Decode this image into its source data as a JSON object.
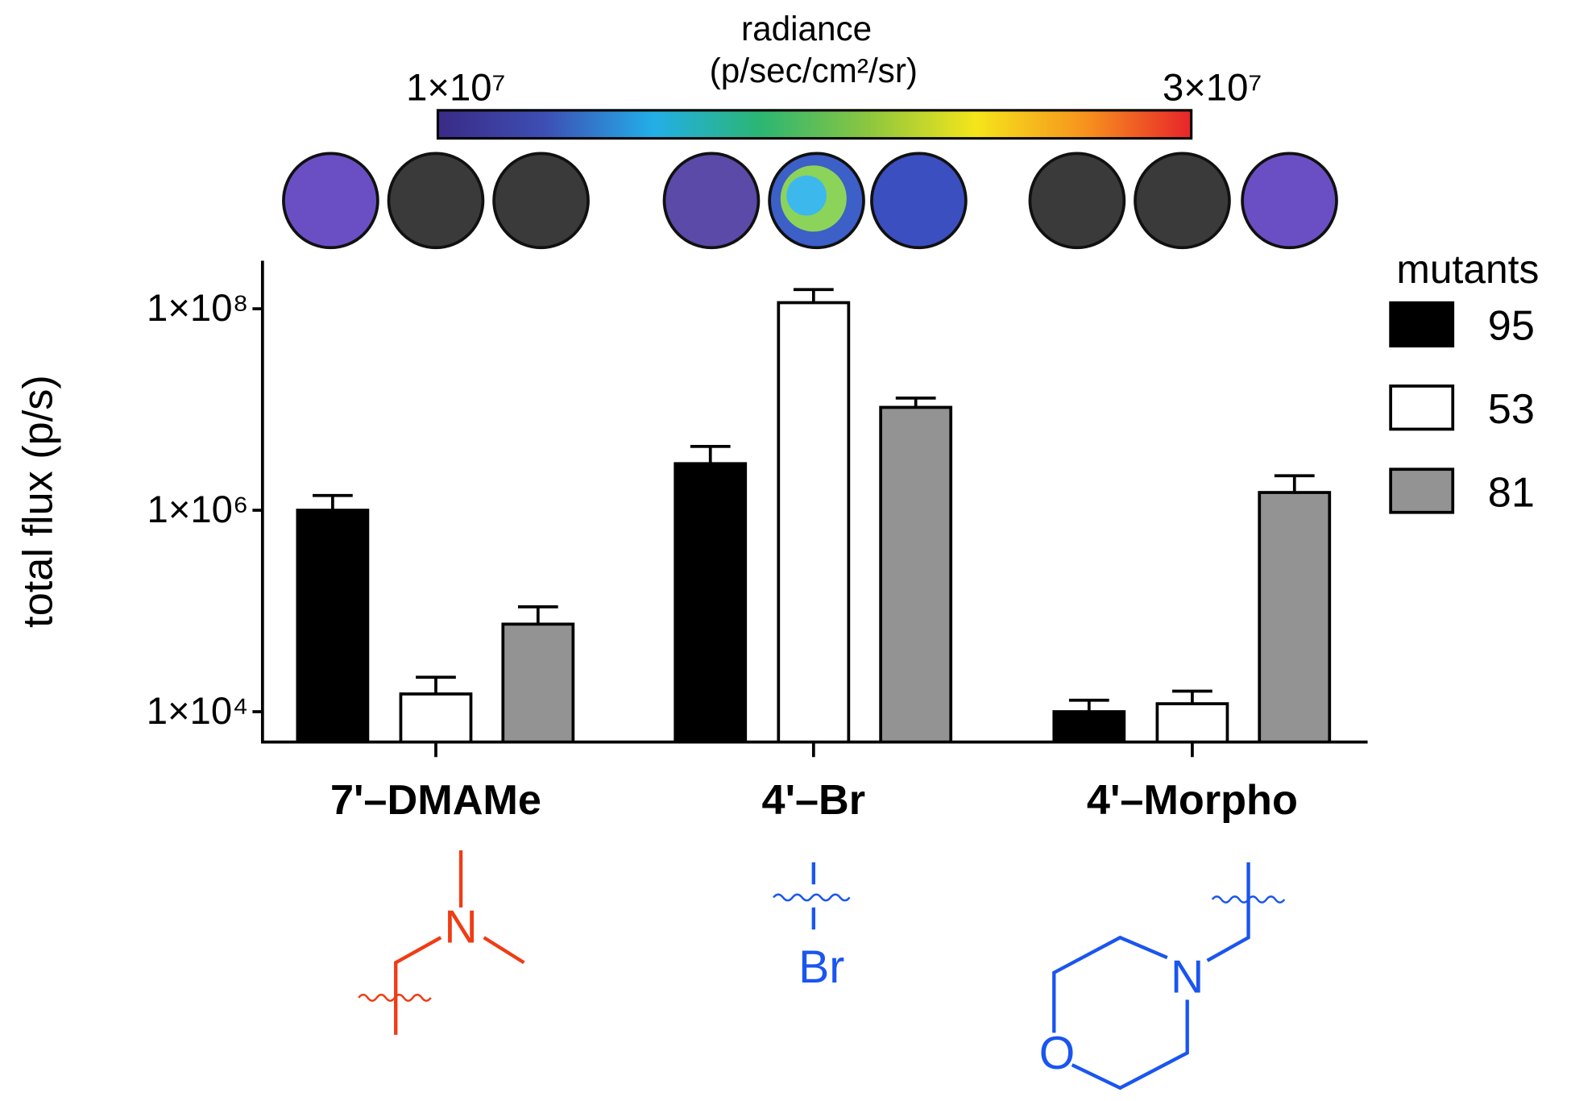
{
  "chart_data": {
    "type": "bar",
    "ylabel": "total flux (p/s)",
    "categories": [
      "7'–DMAMe",
      "4'–Br",
      "4'–Morpho"
    ],
    "log_y": true,
    "ylim": [
      5000,
      300000000
    ],
    "yticks": [
      {
        "value": 10000,
        "label": "1×10⁴"
      },
      {
        "value": 1000000,
        "label": "1×10⁶"
      },
      {
        "value": 100000000,
        "label": "1×10⁸"
      }
    ],
    "legend_title": "mutants",
    "legend": "right",
    "series": [
      {
        "name": "95",
        "color": "#000000",
        "values": [
          1000000,
          2900000,
          10000
        ],
        "errors": [
          400000,
          1400000,
          3000
        ]
      },
      {
        "name": "53",
        "color": "#ffffff",
        "values": [
          15000,
          115000000,
          12000
        ],
        "errors": [
          7000,
          40000000,
          4000
        ]
      },
      {
        "name": "81",
        "color": "#939393",
        "values": [
          74000,
          10500000,
          1500000
        ],
        "errors": [
          36000,
          2500000,
          700000
        ]
      }
    ],
    "colorbar": {
      "title": "radiance",
      "units": "(p/sec/cm²/sr)",
      "ticks": [
        {
          "value": 10000000,
          "label": "1×10⁷"
        },
        {
          "value": 30000000,
          "label": "3×10⁷"
        }
      ],
      "colormap": [
        "#3a2a86",
        "#3d4fb4",
        "#23aee8",
        "#2bb673",
        "#8cc63f",
        "#f5e51b",
        "#f7941d",
        "#e8242a"
      ]
    },
    "structures": [
      {
        "atoms": [
          "N"
        ]
      },
      {
        "atoms": [
          "Br"
        ]
      },
      {
        "atoms": [
          "N",
          "O"
        ]
      }
    ]
  }
}
